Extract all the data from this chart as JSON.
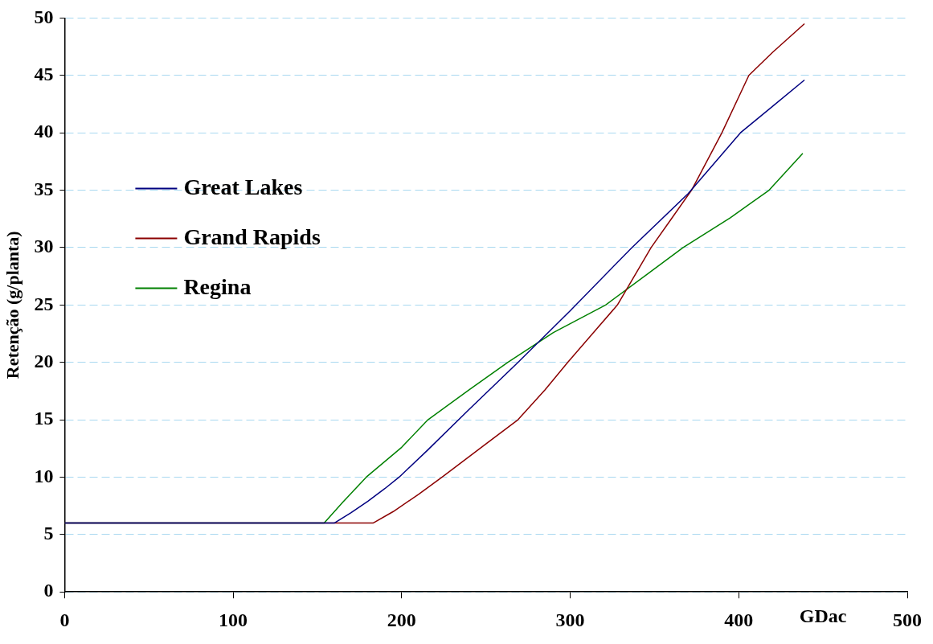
{
  "chart_data": {
    "type": "line",
    "ylabel": "Retenção (g/planta)",
    "xlabel": "GDac",
    "xlim": [
      0,
      500
    ],
    "xticks": [
      0,
      100,
      200,
      300,
      400,
      500
    ],
    "ylim": [
      0,
      50
    ],
    "yticks": [
      0,
      5,
      10,
      15,
      20,
      25,
      30,
      35,
      40,
      45,
      50
    ],
    "grid": "y",
    "legend": "top left",
    "marker": "none",
    "line_style": "solid",
    "series": [
      {
        "name": "Great Lakes",
        "color": "#000080",
        "x": [
          0,
          160,
          170,
          180,
          190,
          198.5,
          215,
          240,
          269,
          300,
          336.6,
          370,
          401,
          420,
          439
        ],
        "values": [
          6,
          6,
          6.9,
          7.9,
          9,
          10,
          12.3,
          15.9,
          20,
          24.5,
          30,
          34.7,
          40,
          42.3,
          44.6
        ]
      },
      {
        "name": "Grand Rapids",
        "color": "#8b0000",
        "x": [
          0,
          183,
          195,
          210,
          224,
          250,
          269,
          285,
          298.5,
          315,
          328,
          348,
          360,
          372,
          390,
          406,
          420,
          439
        ],
        "values": [
          6,
          6,
          7,
          8.5,
          10,
          12.9,
          15,
          17.6,
          20,
          22.8,
          25,
          30,
          32.5,
          35,
          40,
          45,
          47,
          49.5
        ]
      },
      {
        "name": "Regina",
        "color": "#008000",
        "x": [
          0,
          154,
          165,
          179,
          200,
          215.6,
          240,
          263,
          290,
          321,
          345,
          367,
          395,
          418,
          438
        ],
        "values": [
          6,
          6,
          7.8,
          10,
          12.6,
          15,
          17.6,
          20,
          22.6,
          25,
          27.6,
          30,
          32.6,
          35,
          38.2
        ]
      }
    ]
  }
}
